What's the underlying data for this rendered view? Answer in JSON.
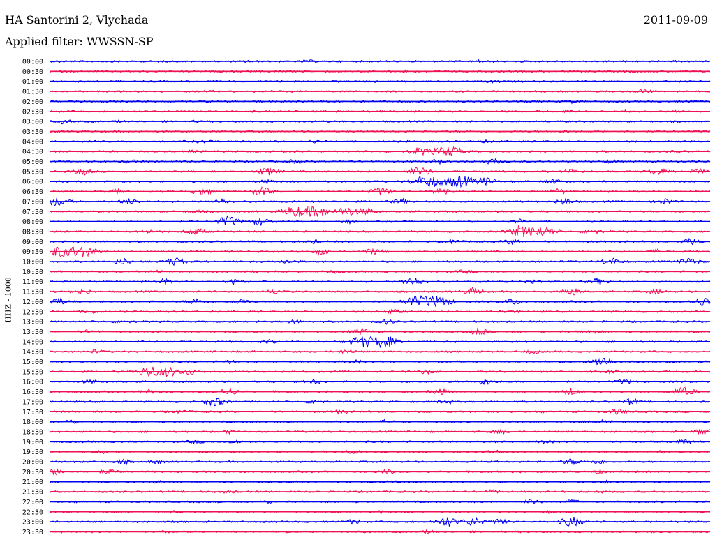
{
  "header": {
    "station": "HA Santorini 2, Vlychada",
    "filter": "Applied filter: WWSSN-SP",
    "date": "2011-09-09"
  },
  "chart_data": {
    "type": "line",
    "title": "HA Santorini 2, Vlychada",
    "subtitle": "Applied filter: WWSSN-SP",
    "ylabel": "HHZ - 1000",
    "xlabel": "",
    "colors": [
      "#0000ee",
      "#ee1155"
    ],
    "grid": false,
    "legend": "none",
    "rows": [
      {
        "label": "00:00",
        "events": [
          [
            0.02,
            0.4
          ],
          [
            0.3,
            0.5
          ],
          [
            0.39,
            0.6
          ],
          [
            0.65,
            0.6
          ]
        ]
      },
      {
        "label": "00:30",
        "events": [
          [
            0.35,
            0.4
          ],
          [
            0.54,
            0.4
          ],
          [
            0.88,
            0.3
          ]
        ]
      },
      {
        "label": "01:00",
        "events": [
          [
            0.49,
            0.3
          ],
          [
            0.67,
            0.7
          ]
        ]
      },
      {
        "label": "01:30",
        "events": [
          [
            0.9,
            1.0
          ],
          [
            0.25,
            0.3
          ]
        ]
      },
      {
        "label": "02:00",
        "events": [
          [
            0.04,
            0.4
          ],
          [
            0.31,
            0.3
          ],
          [
            0.79,
            0.8
          ],
          [
            0.97,
            0.4
          ]
        ]
      },
      {
        "label": "02:30",
        "events": [
          [
            0.78,
            0.6
          ],
          [
            0.87,
            0.4
          ],
          [
            0.95,
            0.5
          ]
        ]
      },
      {
        "label": "03:00",
        "events": [
          [
            0.02,
            1.2
          ],
          [
            0.1,
            0.4
          ],
          [
            0.22,
            0.3
          ]
        ]
      },
      {
        "label": "03:30",
        "events": [
          [
            0.03,
            0.5
          ],
          [
            0.78,
            0.4
          ]
        ]
      },
      {
        "label": "04:00",
        "events": [
          [
            0.23,
            0.7
          ],
          [
            0.4,
            0.6
          ],
          [
            0.66,
            0.5
          ]
        ]
      },
      {
        "label": "04:30",
        "events": [
          [
            0.22,
            0.8
          ],
          [
            0.36,
            0.5
          ],
          [
            0.56,
            2.2
          ],
          [
            0.59,
            1.8
          ],
          [
            0.61,
            2.5
          ],
          [
            0.95,
            0.5
          ]
        ]
      },
      {
        "label": "05:00",
        "events": [
          [
            0.12,
            0.8
          ],
          [
            0.37,
            1.0
          ],
          [
            0.59,
            1.2
          ],
          [
            0.67,
            1.4
          ],
          [
            0.85,
            0.8
          ]
        ]
      },
      {
        "label": "05:30",
        "events": [
          [
            0.05,
            1.7
          ],
          [
            0.33,
            2.2
          ],
          [
            0.56,
            2.6
          ],
          [
            0.79,
            1.4
          ],
          [
            0.92,
            1.6
          ],
          [
            0.98,
            1.4
          ]
        ]
      },
      {
        "label": "06:00",
        "events": [
          [
            0.33,
            1.2
          ],
          [
            0.57,
            4.2
          ],
          [
            0.62,
            4.0
          ],
          [
            0.66,
            2.2
          ],
          [
            0.76,
            1.4
          ]
        ]
      },
      {
        "label": "06:30",
        "events": [
          [
            0.1,
            1.2
          ],
          [
            0.23,
            2.0
          ],
          [
            0.32,
            2.4
          ],
          [
            0.5,
            2.2
          ],
          [
            0.59,
            1.8
          ],
          [
            0.77,
            1.6
          ]
        ]
      },
      {
        "label": "07:00",
        "events": [
          [
            0.01,
            2.6
          ],
          [
            0.12,
            1.6
          ],
          [
            0.26,
            1.4
          ],
          [
            0.53,
            1.4
          ],
          [
            0.78,
            1.8
          ],
          [
            0.93,
            1.6
          ]
        ]
      },
      {
        "label": "07:30",
        "events": [
          [
            0.37,
            3.2
          ],
          [
            0.4,
            4.0
          ],
          [
            0.45,
            2.6
          ],
          [
            0.48,
            1.8
          ],
          [
            0.22,
            0.8
          ]
        ]
      },
      {
        "label": "08:00",
        "events": [
          [
            0.27,
            3.0
          ],
          [
            0.32,
            2.2
          ],
          [
            0.45,
            1.0
          ],
          [
            0.71,
            1.2
          ]
        ]
      },
      {
        "label": "08:30",
        "events": [
          [
            0.15,
            1.0
          ],
          [
            0.22,
            1.8
          ],
          [
            0.72,
            4.2
          ],
          [
            0.75,
            2.6
          ],
          [
            0.82,
            1.6
          ]
        ]
      },
      {
        "label": "09:00",
        "events": [
          [
            0.4,
            0.9
          ],
          [
            0.61,
            1.2
          ],
          [
            0.7,
            1.4
          ],
          [
            0.97,
            1.6
          ]
        ]
      },
      {
        "label": "09:30",
        "events": [
          [
            0.02,
            4.6
          ],
          [
            0.05,
            3.6
          ],
          [
            0.41,
            1.8
          ],
          [
            0.49,
            1.6
          ],
          [
            0.92,
            1.2
          ]
        ]
      },
      {
        "label": "10:00",
        "events": [
          [
            0.11,
            1.6
          ],
          [
            0.19,
            2.2
          ],
          [
            0.36,
            1.0
          ],
          [
            0.85,
            2.0
          ],
          [
            0.97,
            2.0
          ]
        ]
      },
      {
        "label": "10:30",
        "events": [
          [
            0.16,
            0.6
          ],
          [
            0.43,
            0.8
          ],
          [
            0.63,
            0.9
          ]
        ]
      },
      {
        "label": "11:00",
        "events": [
          [
            0.17,
            1.4
          ],
          [
            0.28,
            1.4
          ],
          [
            0.55,
            2.6
          ],
          [
            0.73,
            1.4
          ],
          [
            0.83,
            1.8
          ]
        ]
      },
      {
        "label": "11:30",
        "events": [
          [
            0.05,
            1.4
          ],
          [
            0.34,
            1.2
          ],
          [
            0.64,
            2.0
          ],
          [
            0.79,
            1.8
          ],
          [
            0.92,
            1.4
          ]
        ]
      },
      {
        "label": "12:00",
        "events": [
          [
            0.01,
            2.2
          ],
          [
            0.22,
            1.6
          ],
          [
            0.29,
            1.4
          ],
          [
            0.56,
            4.2
          ],
          [
            0.59,
            3.2
          ],
          [
            0.7,
            1.6
          ],
          [
            0.99,
            2.6
          ]
        ]
      },
      {
        "label": "12:30",
        "events": [
          [
            0.06,
            1.0
          ],
          [
            0.52,
            1.2
          ],
          [
            0.7,
            0.9
          ]
        ]
      },
      {
        "label": "13:00",
        "events": [
          [
            0.11,
            1.0
          ],
          [
            0.37,
            0.8
          ],
          [
            0.51,
            1.2
          ]
        ]
      },
      {
        "label": "13:30",
        "events": [
          [
            0.06,
            1.0
          ],
          [
            0.47,
            1.6
          ],
          [
            0.65,
            1.8
          ],
          [
            0.82,
            1.0
          ]
        ]
      },
      {
        "label": "14:00",
        "events": [
          [
            0.47,
            2.8
          ],
          [
            0.49,
            3.8
          ],
          [
            0.51,
            2.4
          ],
          [
            0.33,
            1.0
          ]
        ]
      },
      {
        "label": "14:30",
        "events": [
          [
            0.07,
            0.8
          ],
          [
            0.45,
            1.2
          ],
          [
            0.73,
            0.9
          ]
        ]
      },
      {
        "label": "15:00",
        "events": [
          [
            0.27,
            0.8
          ],
          [
            0.46,
            1.0
          ],
          [
            0.84,
            2.0
          ],
          [
            0.83,
            1.4
          ]
        ]
      },
      {
        "label": "15:30",
        "events": [
          [
            0.15,
            3.2
          ],
          [
            0.18,
            2.4
          ],
          [
            0.21,
            1.4
          ],
          [
            0.57,
            1.2
          ],
          [
            0.85,
            1.0
          ]
        ]
      },
      {
        "label": "16:00",
        "events": [
          [
            0.06,
            1.0
          ],
          [
            0.4,
            1.2
          ],
          [
            0.66,
            1.6
          ],
          [
            0.87,
            1.2
          ]
        ]
      },
      {
        "label": "16:30",
        "events": [
          [
            0.15,
            1.4
          ],
          [
            0.27,
            2.0
          ],
          [
            0.59,
            1.6
          ],
          [
            0.79,
            1.8
          ],
          [
            0.96,
            2.4
          ]
        ]
      },
      {
        "label": "17:00",
        "events": [
          [
            0.25,
            2.4
          ],
          [
            0.4,
            1.4
          ],
          [
            0.6,
            1.2
          ],
          [
            0.88,
            1.6
          ]
        ]
      },
      {
        "label": "17:30",
        "events": [
          [
            0.2,
            0.9
          ],
          [
            0.44,
            1.0
          ],
          [
            0.86,
            1.6
          ]
        ]
      },
      {
        "label": "18:00",
        "events": [
          [
            0.03,
            1.0
          ],
          [
            0.51,
            0.9
          ],
          [
            0.84,
            1.4
          ]
        ]
      },
      {
        "label": "18:30",
        "events": [
          [
            0.27,
            0.9
          ],
          [
            0.68,
            1.0
          ],
          [
            0.99,
            1.6
          ]
        ]
      },
      {
        "label": "19:00",
        "events": [
          [
            0.22,
            0.9
          ],
          [
            0.28,
            1.0
          ],
          [
            0.75,
            1.2
          ],
          [
            0.96,
            1.4
          ]
        ]
      },
      {
        "label": "19:30",
        "events": [
          [
            0.08,
            0.9
          ],
          [
            0.46,
            1.0
          ],
          [
            0.67,
            0.8
          ],
          [
            0.93,
            0.8
          ]
        ]
      },
      {
        "label": "20:00",
        "events": [
          [
            0.11,
            1.2
          ],
          [
            0.16,
            1.0
          ],
          [
            0.79,
            1.6
          ],
          [
            0.83,
            1.2
          ]
        ]
      },
      {
        "label": "20:30",
        "events": [
          [
            0.01,
            1.6
          ],
          [
            0.09,
            1.4
          ],
          [
            0.51,
            1.0
          ],
          [
            0.83,
            1.0
          ]
        ]
      },
      {
        "label": "21:00",
        "events": [
          [
            0.16,
            0.6
          ],
          [
            0.52,
            0.6
          ],
          [
            0.84,
            0.5
          ]
        ]
      },
      {
        "label": "21:30",
        "events": [
          [
            0.27,
            0.7
          ],
          [
            0.67,
            0.9
          ],
          [
            0.83,
            0.6
          ]
        ]
      },
      {
        "label": "22:00",
        "events": [
          [
            0.33,
            0.6
          ],
          [
            0.73,
            1.2
          ],
          [
            0.79,
            0.9
          ]
        ]
      },
      {
        "label": "22:30",
        "events": [
          [
            0.19,
            0.5
          ],
          [
            0.5,
            0.6
          ],
          [
            0.76,
            0.6
          ]
        ]
      },
      {
        "label": "23:00",
        "events": [
          [
            0.46,
            1.2
          ],
          [
            0.6,
            2.8
          ],
          [
            0.64,
            2.2
          ],
          [
            0.68,
            1.6
          ],
          [
            0.79,
            2.8
          ]
        ]
      },
      {
        "label": "23:30",
        "events": [
          [
            0.17,
            0.4
          ],
          [
            0.57,
            0.7
          ],
          [
            0.92,
            0.4
          ]
        ]
      }
    ]
  }
}
